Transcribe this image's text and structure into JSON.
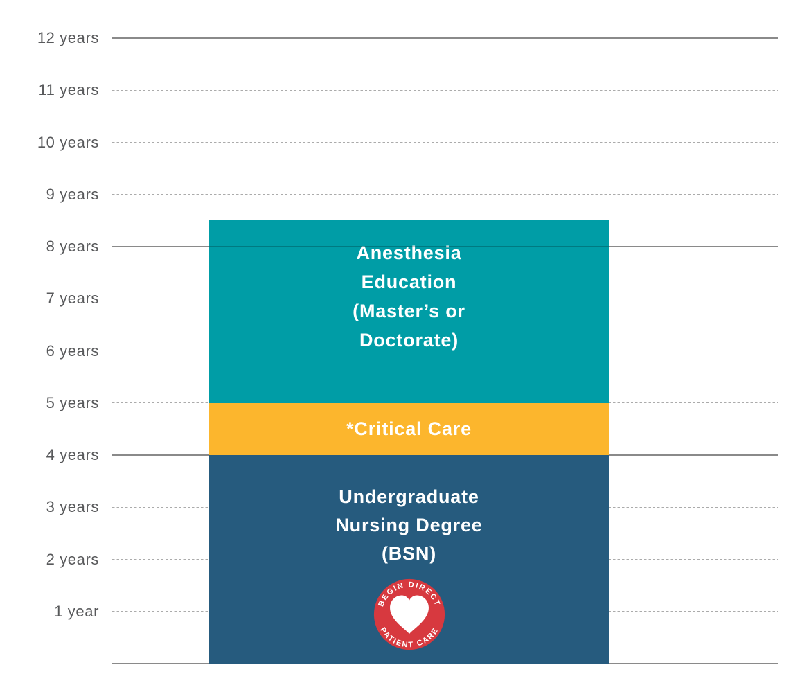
{
  "chart_data": {
    "type": "bar",
    "title": "",
    "xlabel": "",
    "ylabel": "",
    "unit": "years",
    "ylim": [
      0,
      12.7
    ],
    "grid": "on",
    "yticks": [
      {
        "label": "12 years",
        "year": 12,
        "style": "solid"
      },
      {
        "label": "11 years",
        "year": 11,
        "style": "dashed"
      },
      {
        "label": "10 years",
        "year": 10,
        "style": "dashed"
      },
      {
        "label": "9 years",
        "year": 9,
        "style": "dashed"
      },
      {
        "label": "8 years",
        "year": 8,
        "style": "solid"
      },
      {
        "label": "7 years",
        "year": 7,
        "style": "dashed"
      },
      {
        "label": "6 years",
        "year": 6,
        "style": "dashed"
      },
      {
        "label": "5 years",
        "year": 5,
        "style": "dashed"
      },
      {
        "label": "4 years",
        "year": 4,
        "style": "solid"
      },
      {
        "label": "3 years",
        "year": 3,
        "style": "dashed"
      },
      {
        "label": "2 years",
        "year": 2,
        "style": "dashed"
      },
      {
        "label": "1 year",
        "year": 1,
        "style": "dashed"
      },
      {
        "label": "",
        "year": 0,
        "style": "solid"
      }
    ],
    "series": [
      {
        "name": "Undergraduate Nursing Degree (BSN)",
        "label_lines": [
          "Undergraduate",
          "Nursing Degree",
          "(BSN)"
        ],
        "start": 0,
        "end": 4,
        "value": 4,
        "color": "#265B7E",
        "text_color": "#FFFFFF",
        "overlay_gridlines": false,
        "has_badge": true
      },
      {
        "name": "*Critical Care",
        "label_lines": [
          "*Critical Care"
        ],
        "start": 4,
        "end": 5,
        "value": 1,
        "color": "#FCB62D",
        "text_color": "#FFFFFF",
        "overlay_gridlines": false,
        "has_badge": false
      },
      {
        "name": "Anesthesia Education (Master’s or Doctorate)",
        "label_lines": [
          "Anesthesia",
          "Education",
          "(Master’s or",
          "Doctorate)"
        ],
        "start": 5,
        "end": 8.5,
        "value": 3.5,
        "color": "#009DA6",
        "text_color": "#FFFFFF",
        "overlay_gridlines": true,
        "has_badge": false
      }
    ]
  },
  "badge": {
    "top_text": "BEGIN DIRECT",
    "bottom_text": "PATIENT CARE",
    "icon": "heart-icon",
    "bg_color": "#D7393F",
    "heart_color": "#FFFFFF",
    "text_color": "#FFFFFF"
  },
  "colors": {
    "background": "#FFFFFF",
    "axis_label": "#58595B",
    "grid_solid": "#8A8A8A",
    "grid_dashed": "#ABABAB"
  }
}
